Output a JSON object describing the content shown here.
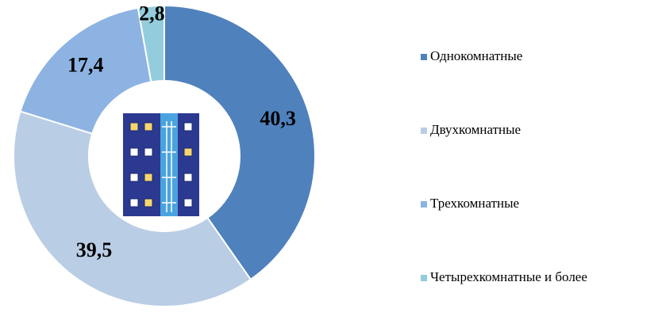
{
  "chart_data": {
    "type": "donut",
    "categories": [
      "Однокомнатные",
      "Двухкомнатные",
      "Трехкомнатные",
      "Четырехкомнатные и более"
    ],
    "values": [
      40.3,
      39.5,
      17.4,
      2.8
    ],
    "value_labels": [
      "40,3",
      "39,5",
      "17,4",
      "2,8"
    ],
    "colors": [
      "#4f81bd",
      "#b9cde5",
      "#8db3e2",
      "#93cddd"
    ],
    "legend": "right"
  }
}
